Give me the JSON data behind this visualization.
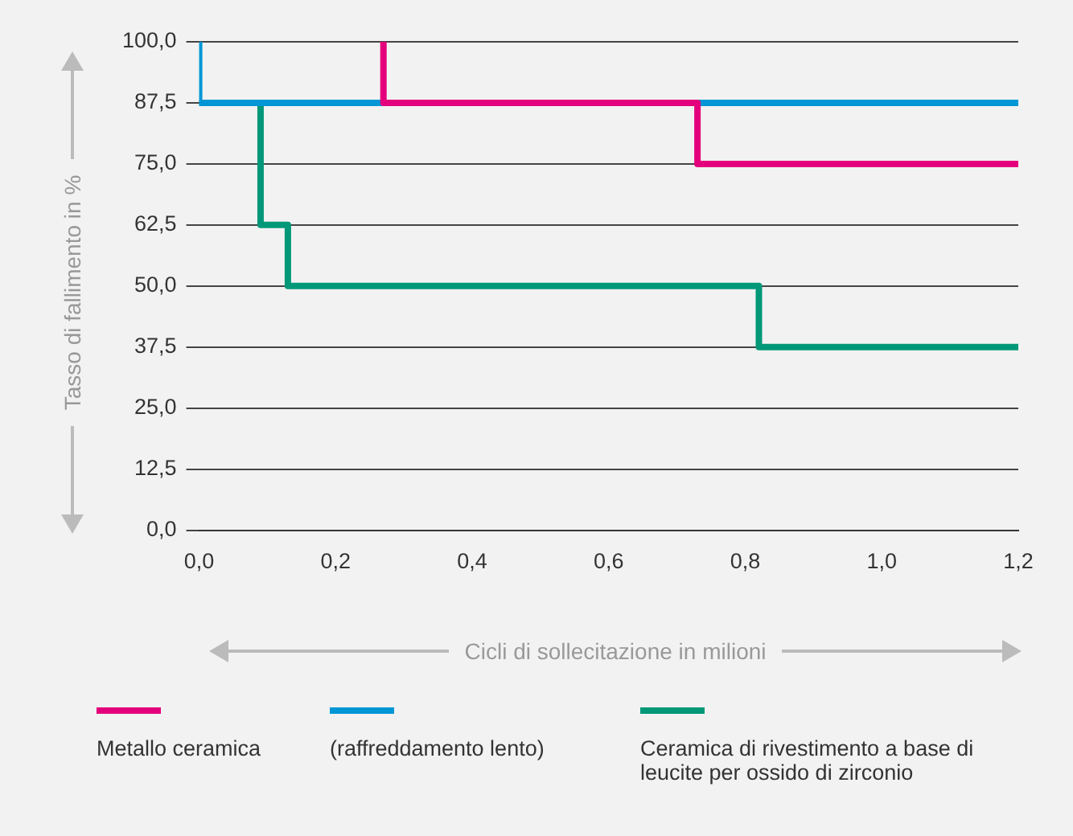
{
  "chart_data": {
    "type": "step",
    "xlabel": "Cicli di sollecitazione in milioni",
    "ylabel": "Tasso di fallimento in %",
    "series": [
      {
        "name": "Metallo ceramica",
        "color": "#e4007c",
        "x": [
          0.27,
          0.27,
          0.73,
          1.2
        ],
        "values": [
          100,
          87.5,
          75,
          75
        ]
      },
      {
        "name": "(raffreddamento lento)",
        "color": "#0096d6",
        "x": [
          0,
          0,
          1.2
        ],
        "values": [
          100,
          87.5,
          87.5
        ]
      },
      {
        "name": "Ceramica di rivestimento a base di leucite per ossido di zirconio",
        "color": "#009878",
        "x": [
          0,
          0.09,
          0.13,
          0.82,
          1.2
        ],
        "values": [
          87.5,
          62.5,
          50,
          37.5,
          37.5
        ]
      }
    ],
    "xlim": [
      0,
      1.2
    ],
    "xticks": [
      {
        "value": 0,
        "label": "0,0"
      },
      {
        "value": 0.2,
        "label": "0,2"
      },
      {
        "value": 0.4,
        "label": "0,4"
      },
      {
        "value": 0.6,
        "label": "0,6"
      },
      {
        "value": 0.8,
        "label": "0,8"
      },
      {
        "value": 1,
        "label": "1,0"
      },
      {
        "value": 1.2,
        "label": "1,2"
      }
    ],
    "ylim": [
      0,
      100
    ],
    "yticks": [
      {
        "value": 0,
        "label": "0,0"
      },
      {
        "value": 12.5,
        "label": "12,5"
      },
      {
        "value": 25,
        "label": "25,0"
      },
      {
        "value": 37.5,
        "label": "37,5"
      },
      {
        "value": 50,
        "label": "50,0"
      },
      {
        "value": 62.5,
        "label": "62,5"
      },
      {
        "value": 75,
        "label": "75,0"
      },
      {
        "value": 87.5,
        "label": "87,5"
      },
      {
        "value": 100,
        "label": "100,0"
      }
    ],
    "grid": "y",
    "legend": "bottom",
    "line_style": "solid",
    "marker": "none"
  }
}
